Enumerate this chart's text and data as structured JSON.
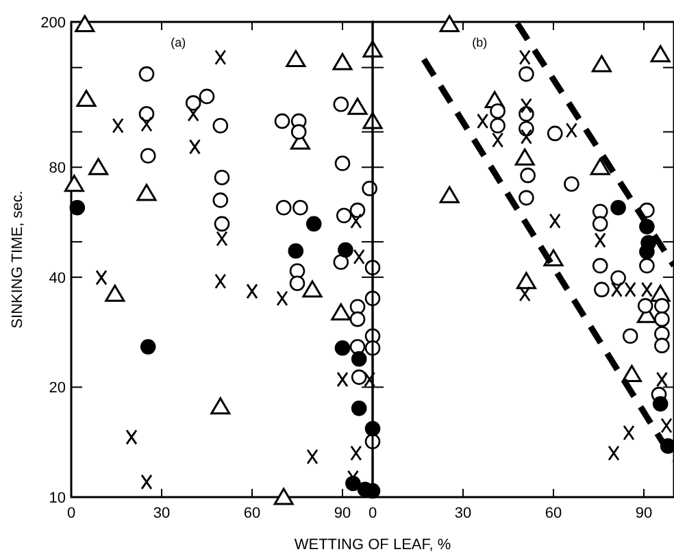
{
  "chart_data": [
    {
      "type": "scatter",
      "ylabel": "SINKING TIME, sec.",
      "xlabel": "WETTING OF LEAF, %",
      "annotations": [
        "(a)"
      ],
      "log": "y",
      "xlim": [
        0,
        100
      ],
      "xticks": [
        0,
        30,
        60,
        90
      ],
      "ylim": [
        10,
        200
      ],
      "yticks": [
        10,
        20,
        40,
        {
          "value": 50,
          "label": null
        },
        80,
        {
          "value": 100,
          "label": null
        },
        {
          "value": 150,
          "label": null
        },
        200
      ],
      "series": [
        {
          "marker": "triangle",
          "color": "#ffffff",
          "x": [
            4.5,
            5,
            9,
            1,
            25,
            74.5,
            90,
            100,
            95,
            100,
            76,
            14.5,
            80,
            89.5,
            49.5,
            70.5
          ],
          "values": [
            197,
            123,
            80,
            72,
            68,
            158,
            155,
            168,
            117,
            107,
            94,
            36,
            37,
            32,
            17.7,
            10
          ]
        },
        {
          "marker": "circle",
          "color": "#ffffff",
          "x": [
            25,
            25,
            25.5,
            40.5,
            45,
            49.5,
            50,
            49.5,
            50,
            70,
            75.5,
            75.5,
            70.5,
            76,
            89.5,
            90,
            90.5,
            95,
            99,
            100,
            89.5,
            75,
            75,
            100,
            95,
            95,
            100,
            100,
            95,
            95.5,
            100
          ],
          "values": [
            144,
            112,
            86,
            120,
            125,
            104,
            75,
            65,
            56,
            107,
            107,
            100,
            62,
            62,
            119,
            82,
            59,
            61,
            70,
            42.5,
            44,
            41.6,
            38.5,
            35,
            33.2,
            30.7,
            27.6,
            25.6,
            25.8,
            21.3,
            14.2
          ]
        },
        {
          "marker": "circle",
          "color": "#000000",
          "x": [
            2,
            80.5,
            74.5,
            91,
            25.5,
            90,
            95.5,
            95.5,
            100,
            93.5,
            97.5,
            100
          ],
          "values": [
            62,
            56,
            47.2,
            47.5,
            25.8,
            25.6,
            23.9,
            17.5,
            15.4,
            10.9,
            10.5,
            10.4
          ]
        },
        {
          "marker": "cross",
          "color": "#000000",
          "x": [
            49.5,
            15.5,
            25,
            40.5,
            41,
            50,
            94.5,
            95.5,
            10,
            49.5,
            60,
            70,
            90,
            99,
            20,
            80,
            94.5,
            25,
            93.5
          ],
          "values": [
            160,
            104,
            105,
            112,
            91,
            51,
            57,
            45.5,
            39.9,
            39,
            36.6,
            35,
            21,
            21,
            14.6,
            12.9,
            13.2,
            11,
            11.3
          ]
        }
      ]
    },
    {
      "type": "scatter",
      "annotations": [
        "(b)"
      ],
      "log": "y",
      "xlim": [
        0,
        100
      ],
      "xticks": [
        0,
        30,
        60,
        90
      ],
      "ylim": [
        10,
        200
      ],
      "yticks": [
        10,
        20,
        40,
        {
          "value": 50,
          "label": null
        },
        80,
        {
          "value": 100,
          "label": null
        },
        {
          "value": 150,
          "label": null
        },
        200
      ],
      "tick_labels": "x",
      "series": [
        {
          "marker": "triangle",
          "color": "#ffffff",
          "x": [
            25.5,
            40.5,
            50.5,
            25.5,
            76,
            95.5,
            75.5,
            60,
            51,
            86,
            95.5,
            91
          ],
          "values": [
            197,
            122,
            85,
            67,
            153,
            163,
            80,
            45,
            39,
            21.7,
            36,
            31.5
          ]
        },
        {
          "marker": "circle",
          "color": "#ffffff",
          "x": [
            51,
            41.5,
            41.5,
            51,
            51,
            60.5,
            51.5,
            66,
            51,
            75.5,
            75.5,
            91,
            91,
            75.5,
            76,
            81.5,
            90.5,
            96,
            96,
            96,
            96,
            85.5,
            95
          ],
          "values": [
            144,
            114,
            104,
            112,
            102,
            99,
            76,
            72,
            66,
            60.5,
            56,
            61,
            43,
            43,
            37,
            39.8,
            33.4,
            33.4,
            30.7,
            28,
            26,
            27.6,
            19.1
          ]
        },
        {
          "marker": "circle",
          "color": "#000000",
          "x": [
            81.5,
            91,
            91.5,
            91,
            95.5,
            98
          ],
          "values": [
            62,
            55,
            49.7,
            47,
            18,
            13.8
          ]
        },
        {
          "marker": "cross",
          "color": "#000000",
          "x": [
            50.5,
            36.5,
            41.5,
            51,
            51,
            66,
            60.5,
            75.5,
            50.5,
            81,
            85.5,
            91,
            96,
            85,
            80,
            97.5
          ],
          "values": [
            160,
            107,
            95,
            118,
            97,
            101,
            57,
            50.5,
            36,
            37,
            37,
            37,
            21,
            15,
            13.2,
            15.7
          ]
        },
        {
          "type": "line",
          "line_style": "dashed",
          "marker": "none",
          "color": "#000000",
          "x": [
            17,
            100
          ],
          "values": [
            158,
            12.6
          ]
        },
        {
          "type": "line",
          "line_style": "dashed",
          "marker": "none",
          "color": "#000000",
          "x": [
            48,
            100
          ],
          "values": [
            198,
            43
          ]
        }
      ]
    }
  ]
}
